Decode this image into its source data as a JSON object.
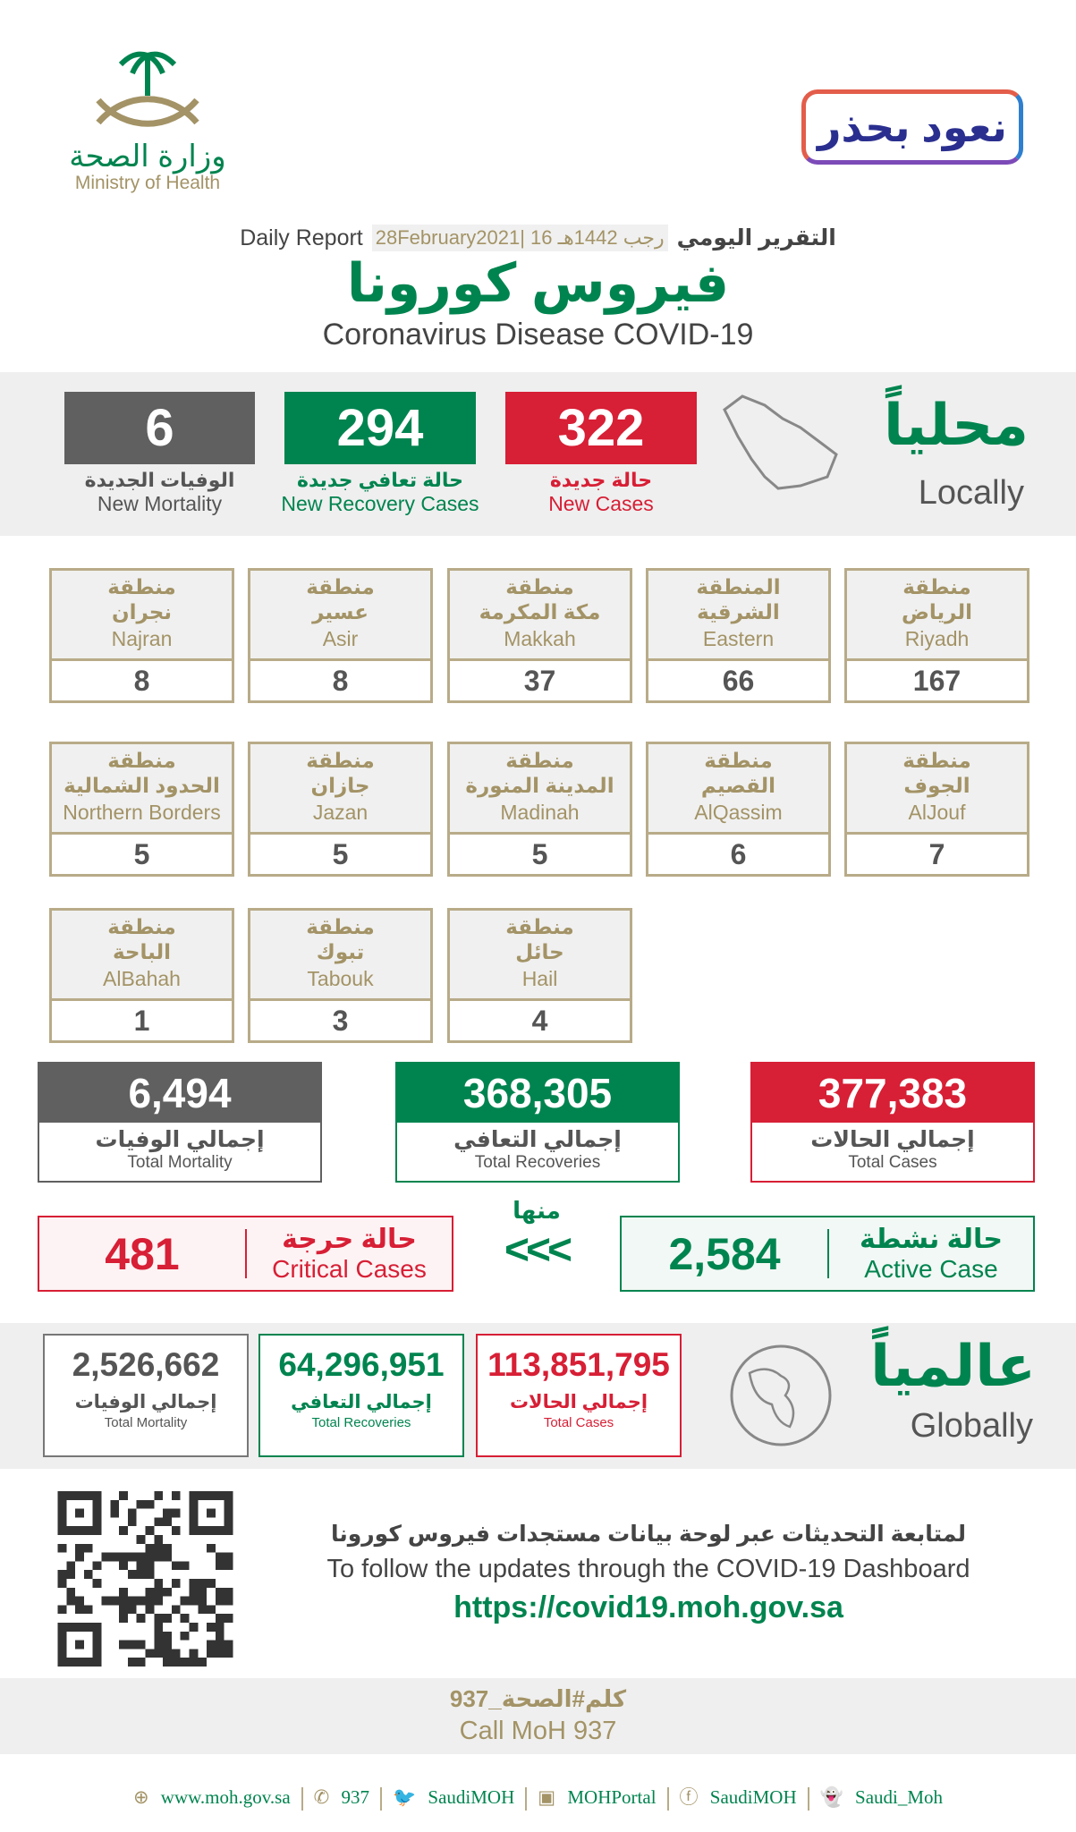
{
  "header": {
    "ministry_ar": "وزارة الصحة",
    "ministry_en": "Ministry of Health",
    "campaign_logo": "نعود بحذر",
    "daily_report_en": "Daily Report",
    "date": "28February2021| 16 رجب 1442هـ",
    "daily_report_ar": "التقرير اليومي",
    "title_ar": "فيروس كورونا",
    "title_en": "Coronavirus Disease COVID-19"
  },
  "colors": {
    "red": "#d71f35",
    "green": "#00844f",
    "grey": "#606060",
    "gold": "#a39366"
  },
  "locally": {
    "title_ar": "محلياً",
    "title_en": "Locally",
    "icon": "saudi-map-icon",
    "new_cases": {
      "value": "322",
      "ar": "حالة جديدة",
      "en": "New Cases"
    },
    "new_recovery": {
      "value": "294",
      "ar": "حالة تعافي جديدة",
      "en": "New Recovery Cases"
    },
    "new_mortality": {
      "value": "6",
      "ar": "الوفيات الجديدة",
      "en": "New Mortality"
    }
  },
  "regions": [
    {
      "ar1": "منطقة",
      "ar2": "الرياض",
      "en": "Riyadh",
      "value": "167"
    },
    {
      "ar1": "المنطقة",
      "ar2": "الشرقية",
      "en": "Eastern",
      "value": "66"
    },
    {
      "ar1": "منطقة",
      "ar2": "مكة المكرمة",
      "en": "Makkah",
      "value": "37"
    },
    {
      "ar1": "منطقة",
      "ar2": "عسير",
      "en": "Asir",
      "value": "8"
    },
    {
      "ar1": "منطقة",
      "ar2": "نجران",
      "en": "Najran",
      "value": "8"
    },
    {
      "ar1": "منطقة",
      "ar2": "الجوف",
      "en": "AlJouf",
      "value": "7"
    },
    {
      "ar1": "منطقة",
      "ar2": "القصيم",
      "en": "AlQassim",
      "value": "6"
    },
    {
      "ar1": "منطقة",
      "ar2": "المدينة المنورة",
      "en": "Madinah",
      "value": "5"
    },
    {
      "ar1": "منطقة",
      "ar2": "جازان",
      "en": "Jazan",
      "value": "5"
    },
    {
      "ar1": "منطقة",
      "ar2": "الحدود الشمالية",
      "en": "Northern Borders",
      "value": "5"
    },
    {
      "ar1": "منطقة",
      "ar2": "حائل",
      "en": "Hail",
      "value": "4"
    },
    {
      "ar1": "منطقة",
      "ar2": "تبوك",
      "en": "Tabouk",
      "value": "3"
    },
    {
      "ar1": "منطقة",
      "ar2": "الباحة",
      "en": "AlBahah",
      "value": "1"
    }
  ],
  "totals": {
    "cases": {
      "value": "377,383",
      "ar": "إجمالي الحالات",
      "en": "Total Cases"
    },
    "recoveries": {
      "value": "368,305",
      "ar": "إجمالي التعافي",
      "en": "Total Recoveries"
    },
    "mortality": {
      "value": "6,494",
      "ar": "إجمالي الوفيات",
      "en": "Total Mortality"
    }
  },
  "active": {
    "value": "2,584",
    "ar": "حالة نشطة",
    "en": "Active Case"
  },
  "of_which": "منها",
  "arrows": "<<<",
  "critical": {
    "value": "481",
    "ar": "حالة حرجة",
    "en": "Critical Cases"
  },
  "globally": {
    "title_ar": "عالمياً",
    "title_en": "Globally",
    "icon": "globe-icon",
    "cases": {
      "value": "113,851,795",
      "ar": "إجمالي الحالات",
      "en": "Total Cases"
    },
    "recoveries": {
      "value": "64,296,951",
      "ar": "إجمالي التعافي",
      "en": "Total Recoveries"
    },
    "mortality": {
      "value": "2,526,662",
      "ar": "إجمالي الوفيات",
      "en": "Total Mortality"
    }
  },
  "dashboard": {
    "ar": "لمتابعة التحديثات عبر لوحة بيانات مستجدات فيروس كورونا",
    "en": "To follow the updates through the COVID-19 Dashboard",
    "url": "https://covid19.moh.gov.sa"
  },
  "call": {
    "ar": "كلم#الصحة_937",
    "en": "Call MoH 937"
  },
  "footer": [
    {
      "icon": "globe-icon",
      "text": "www.moh.gov.sa"
    },
    {
      "icon": "phone-icon",
      "text": "937"
    },
    {
      "icon": "twitter-icon",
      "text": "SaudiMOH"
    },
    {
      "icon": "youtube-icon",
      "text": "MOHPortal"
    },
    {
      "icon": "facebook-icon",
      "text": "SaudiMOH"
    },
    {
      "icon": "snapchat-icon",
      "text": "Saudi_Moh"
    }
  ]
}
